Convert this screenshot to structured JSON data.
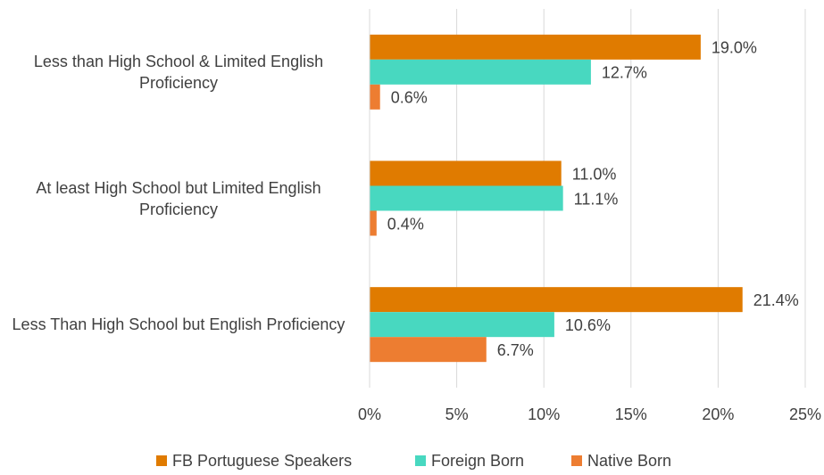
{
  "chart_data": {
    "type": "bar",
    "orientation": "horizontal",
    "categories": [
      "Less than High School & Limited English Proficiency",
      "At least High School but Limited English Proficiency",
      "Less Than High School but English Proficiency"
    ],
    "series": [
      {
        "name": "FB Portuguese Speakers",
        "color": "#e07b00",
        "values": [
          19.0,
          11.0,
          21.4
        ],
        "value_labels": [
          "19.0%",
          "11.0%",
          "21.4%"
        ]
      },
      {
        "name": "Foreign Born",
        "color": "#48d8c0",
        "values": [
          12.7,
          11.1,
          10.6
        ],
        "value_labels": [
          "12.7%",
          "11.1%",
          "10.6%"
        ]
      },
      {
        "name": "Native Born",
        "color": "#ed7d31",
        "values": [
          0.6,
          0.4,
          6.7
        ],
        "value_labels": [
          "0.6%",
          "0.4%",
          "6.7%"
        ]
      }
    ],
    "xlim": [
      0,
      25
    ],
    "xticks": [
      {
        "value": 0,
        "label": "0%"
      },
      {
        "value": 5,
        "label": "5%"
      },
      {
        "value": 10,
        "label": "10%"
      },
      {
        "value": 15,
        "label": "15%"
      },
      {
        "value": 20,
        "label": "20%"
      },
      {
        "value": 25,
        "label": "25%"
      }
    ],
    "grid": true,
    "legend": "bottom"
  }
}
